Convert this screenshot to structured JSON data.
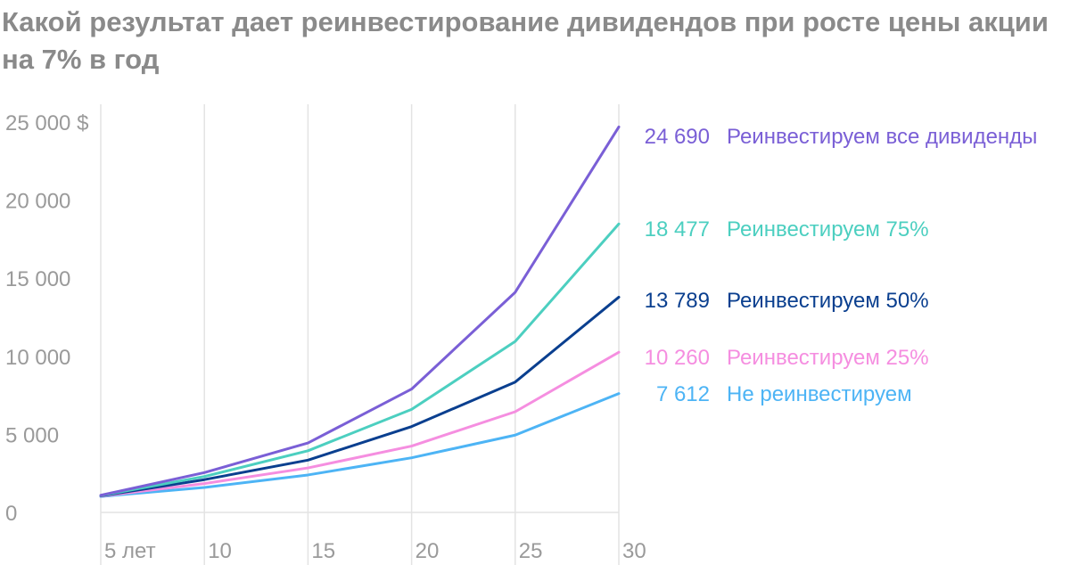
{
  "title": "Какой результат дает реинвестирование дивидендов при росте цены акции на 7% в год",
  "chart_data": {
    "type": "line",
    "title": "Какой результат дает реинвестирование дивидендов при росте цены акции на 7% в год",
    "x": [
      5,
      10,
      15,
      20,
      25,
      30
    ],
    "x_tick_labels": [
      "5 лет",
      "10",
      "15",
      "20",
      "25",
      "30"
    ],
    "y_tick_labels": [
      "0",
      "5 000",
      "10 000",
      "15 000",
      "20 000",
      "25 000 $"
    ],
    "y_ticks": [
      0,
      5000,
      10000,
      15000,
      20000,
      25000
    ],
    "ylim": [
      0,
      25000
    ],
    "xlim": [
      5,
      30
    ],
    "grid": "vertical",
    "legend": "right (end labels)",
    "series": [
      {
        "name": "Реинвестируем все дивиденды",
        "end_label": "24 690",
        "color": "#7a5fd6",
        "values": [
          1100,
          2550,
          4450,
          7900,
          14100,
          24690
        ]
      },
      {
        "name": "Реинвестируем 75%",
        "end_label": "18 477",
        "color": "#4ccfc0",
        "values": [
          1080,
          2300,
          3950,
          6600,
          10950,
          18477
        ]
      },
      {
        "name": "Реинвестируем 50%",
        "end_label": "13 789",
        "color": "#0a3f8f",
        "values": [
          1060,
          2100,
          3350,
          5500,
          8350,
          13789
        ]
      },
      {
        "name": "Реинвестируем 25%",
        "end_label": "10 260",
        "color": "#f58ee0",
        "values": [
          1040,
          1850,
          2850,
          4250,
          6450,
          10260
        ]
      },
      {
        "name": "Не реинвестируем",
        "end_label": "7 612",
        "color": "#4db4f5",
        "values": [
          1020,
          1600,
          2400,
          3500,
          4950,
          7612
        ]
      }
    ]
  }
}
